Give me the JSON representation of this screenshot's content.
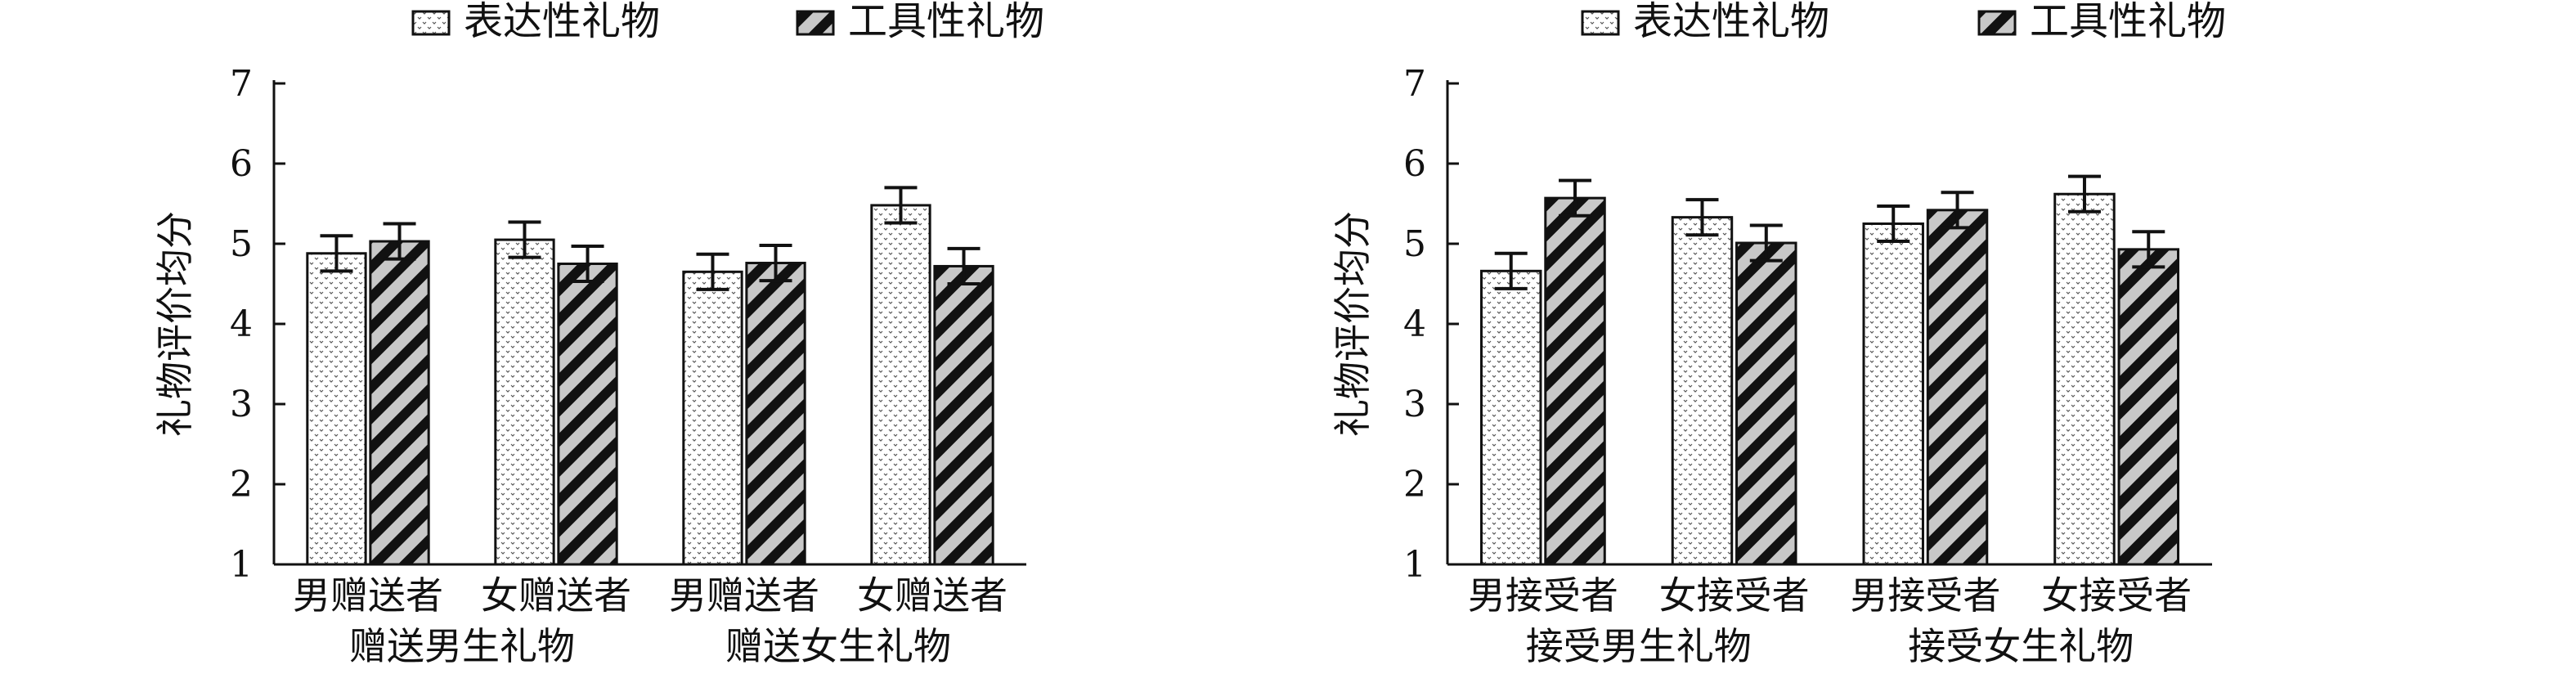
{
  "chart_data": [
    {
      "type": "bar",
      "legend": [
        "表达性礼物",
        "工具性礼物"
      ],
      "ylabel": "礼物评价均分",
      "ylim": [
        1,
        7
      ],
      "yticks": [
        1,
        2,
        3,
        4,
        5,
        6,
        7
      ],
      "categories": [
        "男赠送者",
        "女赠送者",
        "男赠送者",
        "女赠送者"
      ],
      "groups": [
        {
          "label": "赠送男生礼物",
          "span": [
            0,
            1
          ]
        },
        {
          "label": "赠送女生礼物",
          "span": [
            2,
            3
          ]
        }
      ],
      "series": [
        {
          "name": "表达性礼物",
          "values": [
            4.88,
            5.05,
            4.65,
            5.48
          ],
          "errors": [
            0.22,
            0.22,
            0.22,
            0.22
          ]
        },
        {
          "name": "工具性礼物",
          "values": [
            5.03,
            4.75,
            4.76,
            4.72
          ],
          "errors": [
            0.22,
            0.22,
            0.22,
            0.22
          ]
        }
      ],
      "grid": false,
      "legend_position": "top"
    },
    {
      "type": "bar",
      "legend": [
        "表达性礼物",
        "工具性礼物"
      ],
      "ylabel": "礼物评价均分",
      "ylim": [
        1,
        7
      ],
      "yticks": [
        1,
        2,
        3,
        4,
        5,
        6,
        7
      ],
      "categories": [
        "男接受者",
        "女接受者",
        "男接受者",
        "女接受者"
      ],
      "groups": [
        {
          "label": "接受男生礼物",
          "span": [
            0,
            1
          ]
        },
        {
          "label": "接受女生礼物",
          "span": [
            2,
            3
          ]
        }
      ],
      "series": [
        {
          "name": "表达性礼物",
          "values": [
            4.66,
            5.33,
            5.25,
            5.62
          ],
          "errors": [
            0.22,
            0.22,
            0.22,
            0.22
          ]
        },
        {
          "name": "工具性礼物",
          "values": [
            5.57,
            5.01,
            5.42,
            4.93
          ],
          "errors": [
            0.22,
            0.22,
            0.22,
            0.22
          ]
        }
      ],
      "grid": false,
      "legend_position": "top"
    }
  ],
  "colors": {
    "ink": "#111111",
    "dotted_fill_bg": "#ffffff",
    "stripe_fill_bg": "#c8c8c8"
  }
}
